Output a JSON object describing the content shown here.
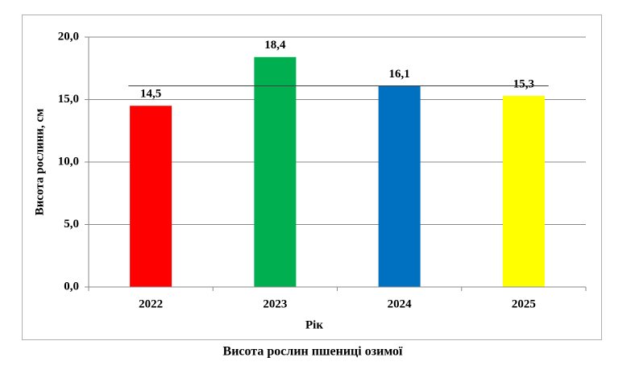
{
  "chart_data": {
    "type": "bar",
    "caption": "Висота рослин пшениці озимої",
    "x_label": "Рік",
    "y_label": "Висота рослини, см",
    "categories": [
      "2022",
      "2023",
      "2024",
      "2025"
    ],
    "values": [
      14.5,
      18.4,
      16.1,
      15.3
    ],
    "value_labels": [
      "14,5",
      "18,4",
      "16,1",
      "15,3"
    ],
    "colors": [
      "#ff0000",
      "#00b050",
      "#0070c0",
      "#ffff00"
    ],
    "reference_line": 16.1,
    "ylim": [
      0,
      20
    ],
    "yticks": [
      {
        "value": 0,
        "label": "0,0"
      },
      {
        "value": 5,
        "label": "5,0"
      },
      {
        "value": 10,
        "label": "10,0"
      },
      {
        "value": 15,
        "label": "15,0"
      },
      {
        "value": 20,
        "label": "20,0"
      }
    ],
    "grid": true
  }
}
